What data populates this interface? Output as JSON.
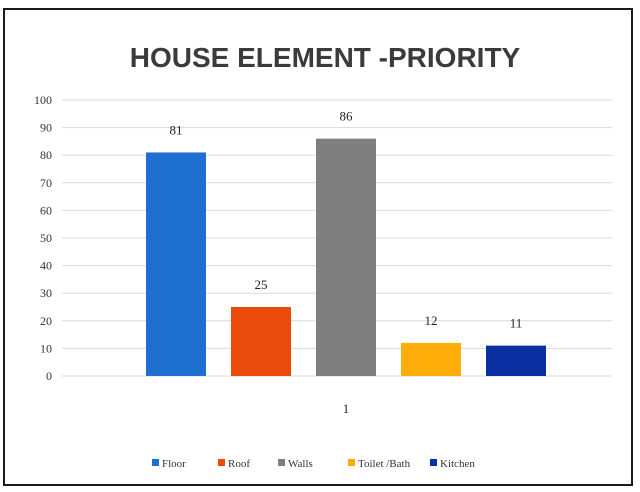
{
  "chart_data": {
    "type": "bar",
    "title": "HOUSE ELEMENT -PRIORITY",
    "categories": [
      "1"
    ],
    "series": [
      {
        "name": "Floor",
        "values": [
          81
        ],
        "color": "#1f6fd1"
      },
      {
        "name": "Roof",
        "values": [
          25
        ],
        "color": "#ea4b0b"
      },
      {
        "name": "Walls",
        "values": [
          86
        ],
        "color": "#7f7f7f"
      },
      {
        "name": "Toilet /Bath",
        "values": [
          12
        ],
        "color": "#ffad0a"
      },
      {
        "name": "Kitchen",
        "values": [
          11
        ],
        "color": "#0a2fa0"
      }
    ],
    "ylim": [
      0,
      100
    ],
    "yticks": [
      "0",
      "10",
      "20",
      "30",
      "40",
      "50",
      "60",
      "70",
      "80",
      "90",
      "100"
    ],
    "grid": true,
    "legend_position": "bottom",
    "data_labels": true
  }
}
